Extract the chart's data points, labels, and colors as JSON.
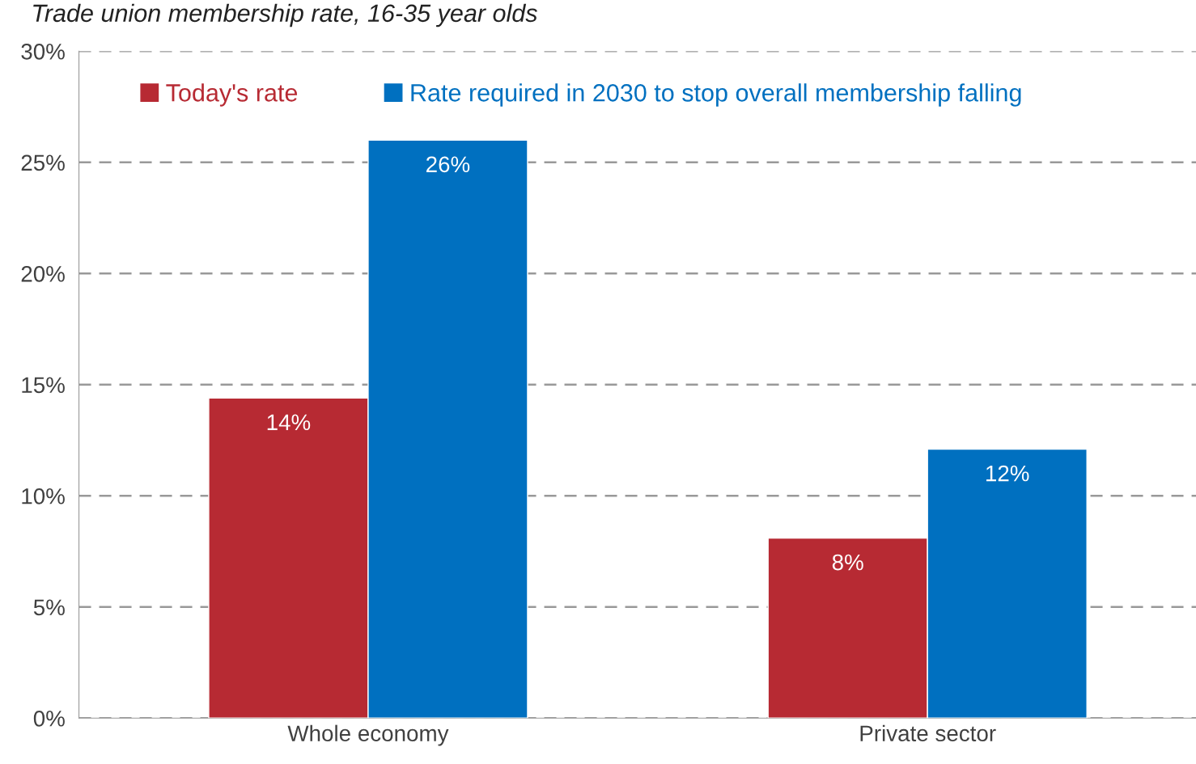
{
  "chart_data": {
    "type": "bar",
    "title": "Trade union membership rate, 16-35 year olds",
    "categories": [
      "Whole economy",
      "Private sector"
    ],
    "series": [
      {
        "name": "Today's rate",
        "color": "#b72a33",
        "values": [
          14.4,
          8.1
        ],
        "value_labels": [
          "14%",
          "8%"
        ]
      },
      {
        "name": "Rate required in 2030 to stop overall membership falling",
        "color": "#0070c0",
        "values": [
          26.0,
          12.1
        ],
        "value_labels": [
          "26%",
          "12%"
        ]
      }
    ],
    "ylim": [
      0,
      30
    ],
    "yticks": [
      {
        "value": 0,
        "label": "0%"
      },
      {
        "value": 5,
        "label": "5%"
      },
      {
        "value": 10,
        "label": "10%"
      },
      {
        "value": 15,
        "label": "15%"
      },
      {
        "value": 20,
        "label": "20%"
      },
      {
        "value": 25,
        "label": "25%"
      },
      {
        "value": 30,
        "label": "30%"
      }
    ],
    "grid": "y",
    "line_style": "dashed",
    "legend": "top"
  }
}
